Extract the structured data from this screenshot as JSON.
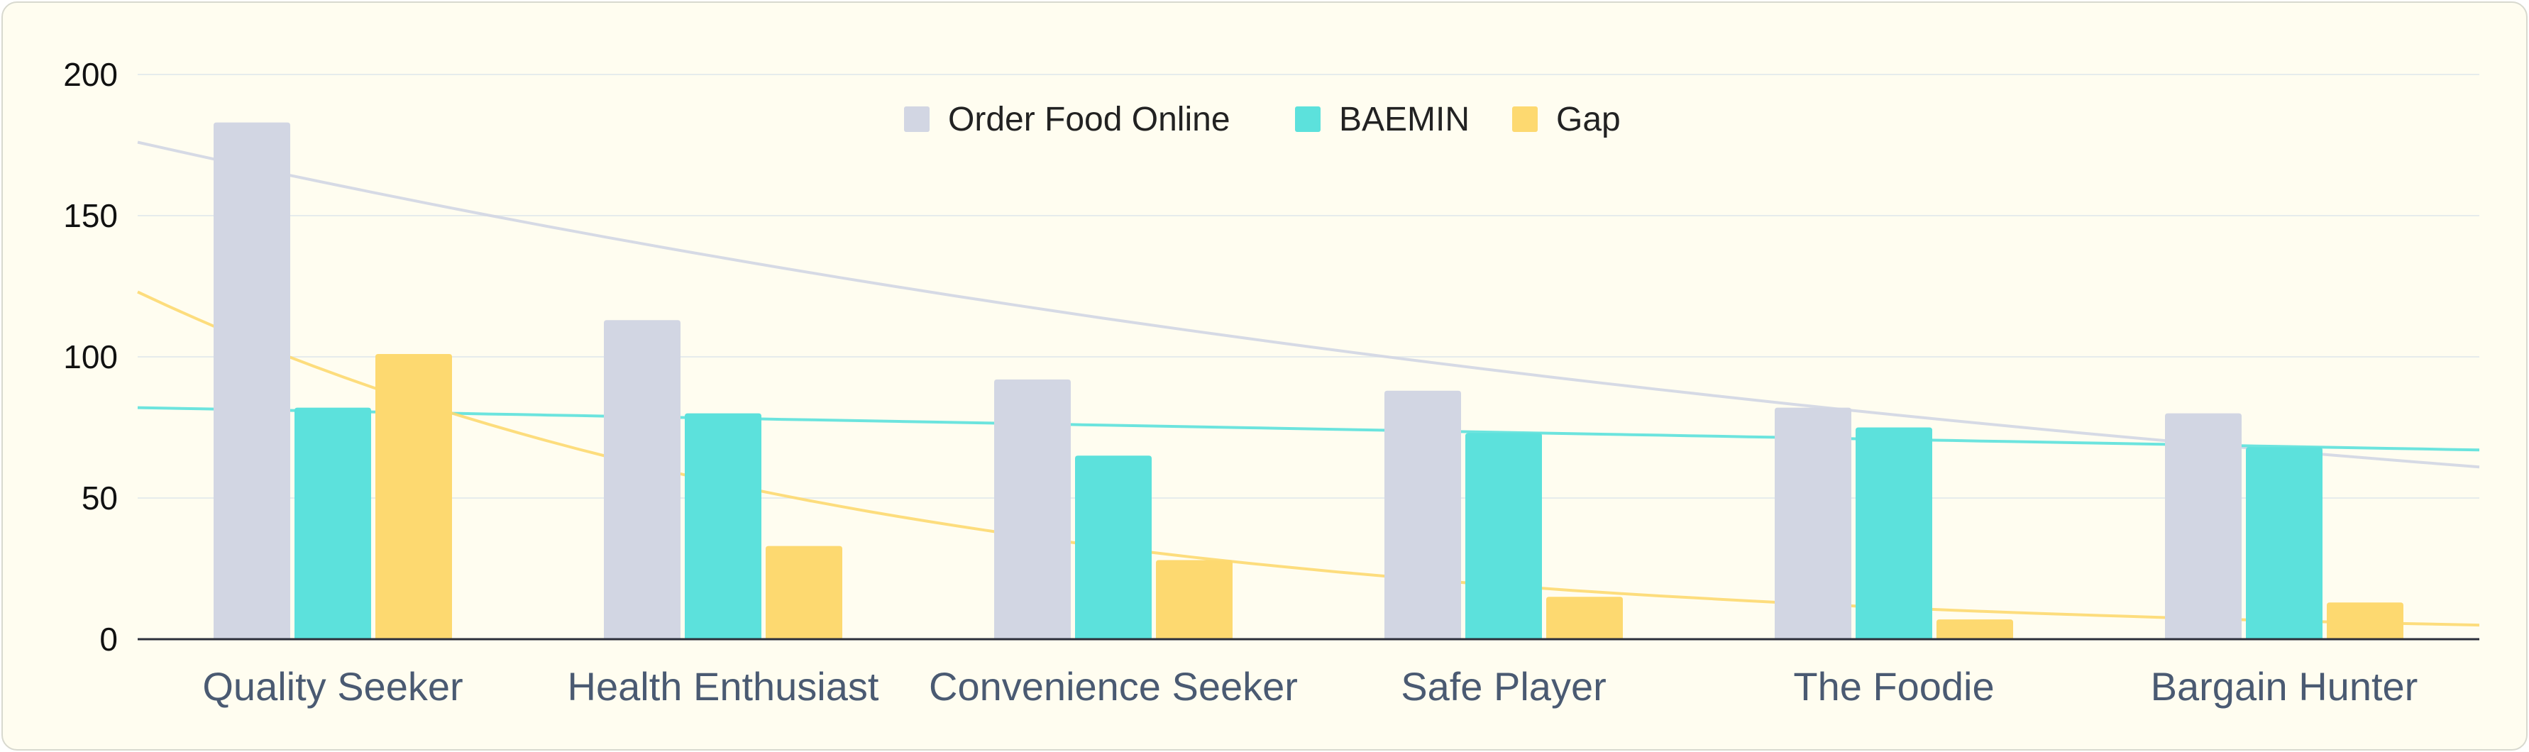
{
  "chart_data": {
    "type": "bar",
    "categories": [
      "Quality Seeker",
      "Health Enthusiast",
      "Convenience Seeker",
      "Safe Player",
      "The Foodie",
      "Bargain Hunter"
    ],
    "series": [
      {
        "name": "Order Food Online",
        "values": [
          183,
          113,
          92,
          88,
          82,
          80
        ],
        "color": "#d2d6e3"
      },
      {
        "name": "BAEMIN",
        "values": [
          82,
          80,
          65,
          73,
          75,
          68
        ],
        "color": "#5ce1dc"
      },
      {
        "name": "Gap",
        "values": [
          101,
          33,
          28,
          15,
          7,
          13
        ],
        "color": "#fdd970"
      }
    ],
    "trendlines": [
      {
        "series": "Order Food Online",
        "kind": "exponential",
        "start": 176,
        "end": 61,
        "color": "#d2d6e3"
      },
      {
        "series": "BAEMIN",
        "kind": "linear",
        "start": 82,
        "end": 67,
        "color": "#5ce1dc"
      },
      {
        "series": "Gap",
        "kind": "exponential",
        "start": 123,
        "end": 5,
        "color": "#fdd970"
      }
    ],
    "yticks": [
      "0",
      "50",
      "100",
      "150",
      "200"
    ],
    "ylim": [
      0,
      200
    ],
    "grid": true,
    "legend_position": "top-center",
    "title": "",
    "xlabel": "",
    "ylabel": ""
  }
}
